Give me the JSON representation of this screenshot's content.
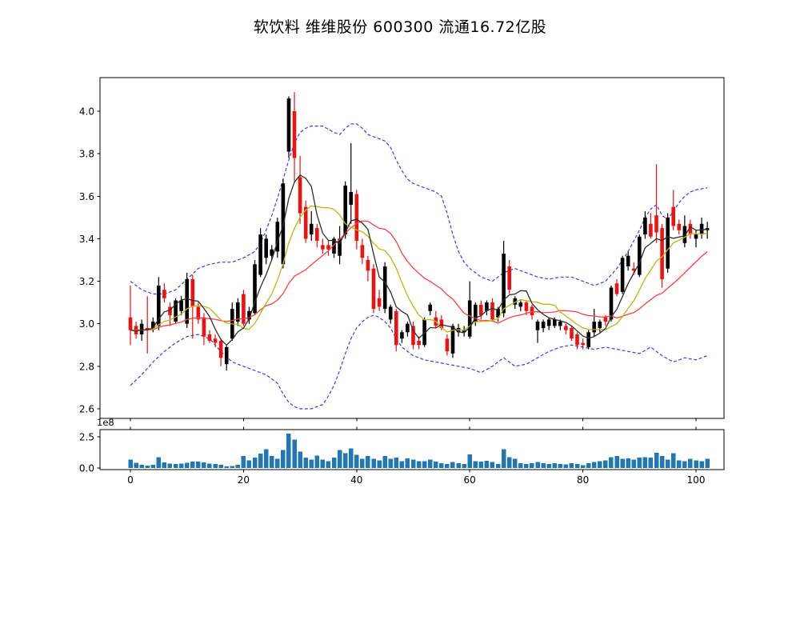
{
  "title": "软饮料 维维股份 600300 流通16.72亿股",
  "chart_data": {
    "type": "candlestick+volume",
    "title": "软饮料 维维股份 600300 流通16.72亿股",
    "price_axis": {
      "ticks": [
        2.6,
        2.8,
        3.0,
        3.2,
        3.4,
        3.6,
        3.8,
        4.0
      ],
      "ylim": [
        2.555,
        4.158
      ]
    },
    "volume_axis": {
      "ticks": [
        "0.0",
        "2.5"
      ],
      "tick_values": [
        0,
        2.5
      ],
      "offset_label": "1e8",
      "unit": 100000000,
      "ylim": [
        0,
        3.08
      ]
    },
    "x_axis": {
      "ticks": [
        0,
        20,
        40,
        60,
        80,
        100
      ],
      "xlim": [
        -5.4,
        105
      ]
    },
    "legend": "none",
    "grid": false,
    "colors": {
      "up_candle": "#000000",
      "down_candle": "#ee1111",
      "volume_bar": "#1f77b4",
      "band": "#3b3bee",
      "ma_fast": "#2e2e2e",
      "ma_mid": "#c2b411",
      "ma_slow": "#ff4040",
      "frame": "#000000",
      "background": "#ffffff"
    },
    "overlays": {
      "ma_lines": [
        {
          "name": "ma-fast-black",
          "window": 5,
          "color": "#2e2e2e"
        },
        {
          "name": "ma-mid-yellow",
          "window": 10,
          "color": "#c2b411"
        },
        {
          "name": "ma-slow-red",
          "window": 20,
          "color": "#ff4040"
        }
      ],
      "band_upper_keypoints": [
        [
          0,
          3.2
        ],
        [
          2,
          3.16
        ],
        [
          4,
          3.14
        ],
        [
          6,
          3.14
        ],
        [
          8,
          3.16
        ],
        [
          10,
          3.21
        ],
        [
          12,
          3.26
        ],
        [
          14,
          3.28
        ],
        [
          16,
          3.29
        ],
        [
          18,
          3.29
        ],
        [
          20,
          3.31
        ],
        [
          22,
          3.34
        ],
        [
          23,
          3.38
        ],
        [
          24,
          3.44
        ],
        [
          25,
          3.51
        ],
        [
          26,
          3.59
        ],
        [
          27,
          3.68
        ],
        [
          28,
          3.77
        ],
        [
          29,
          3.85
        ],
        [
          30,
          3.9
        ],
        [
          31,
          3.92
        ],
        [
          32,
          3.93
        ],
        [
          34,
          3.93
        ],
        [
          36,
          3.9
        ],
        [
          37,
          3.89
        ],
        [
          38,
          3.92
        ],
        [
          39,
          3.94
        ],
        [
          40,
          3.94
        ],
        [
          41,
          3.92
        ],
        [
          42,
          3.89
        ],
        [
          44,
          3.87
        ],
        [
          45,
          3.86
        ],
        [
          46,
          3.83
        ],
        [
          47,
          3.77
        ],
        [
          48,
          3.72
        ],
        [
          49,
          3.68
        ],
        [
          50,
          3.66
        ],
        [
          52,
          3.64
        ],
        [
          54,
          3.62
        ],
        [
          55,
          3.6
        ],
        [
          56,
          3.52
        ],
        [
          57,
          3.42
        ],
        [
          58,
          3.34
        ],
        [
          59,
          3.29
        ],
        [
          60,
          3.26
        ],
        [
          62,
          3.22
        ],
        [
          64,
          3.2
        ],
        [
          66,
          3.24
        ],
        [
          68,
          3.26
        ],
        [
          70,
          3.24
        ],
        [
          72,
          3.22
        ],
        [
          74,
          3.21
        ],
        [
          76,
          3.22
        ],
        [
          78,
          3.22
        ],
        [
          80,
          3.2
        ],
        [
          82,
          3.18
        ],
        [
          84,
          3.2
        ],
        [
          86,
          3.26
        ],
        [
          88,
          3.34
        ],
        [
          90,
          3.44
        ],
        [
          91,
          3.5
        ],
        [
          92,
          3.54
        ],
        [
          93,
          3.56
        ],
        [
          94,
          3.51
        ],
        [
          95,
          3.49
        ],
        [
          96,
          3.53
        ],
        [
          97,
          3.57
        ],
        [
          98,
          3.6
        ],
        [
          99,
          3.62
        ],
        [
          100,
          3.63
        ],
        [
          102,
          3.64
        ]
      ],
      "band_lower_keypoints": [
        [
          0,
          2.71
        ],
        [
          2,
          2.76
        ],
        [
          4,
          2.82
        ],
        [
          6,
          2.87
        ],
        [
          8,
          2.91
        ],
        [
          10,
          2.94
        ],
        [
          12,
          2.95
        ],
        [
          14,
          2.93
        ],
        [
          16,
          2.87
        ],
        [
          18,
          2.82
        ],
        [
          20,
          2.8
        ],
        [
          22,
          2.78
        ],
        [
          24,
          2.76
        ],
        [
          26,
          2.72
        ],
        [
          27,
          2.67
        ],
        [
          28,
          2.63
        ],
        [
          29,
          2.61
        ],
        [
          30,
          2.6
        ],
        [
          32,
          2.6
        ],
        [
          34,
          2.62
        ],
        [
          35,
          2.66
        ],
        [
          36,
          2.71
        ],
        [
          37,
          2.78
        ],
        [
          38,
          2.86
        ],
        [
          39,
          2.93
        ],
        [
          40,
          2.98
        ],
        [
          41,
          3.01
        ],
        [
          42,
          3.03
        ],
        [
          43,
          3.04
        ],
        [
          44,
          3.03
        ],
        [
          45,
          3.01
        ],
        [
          46,
          2.98
        ],
        [
          47,
          2.93
        ],
        [
          48,
          2.89
        ],
        [
          50,
          2.85
        ],
        [
          52,
          2.83
        ],
        [
          54,
          2.82
        ],
        [
          56,
          2.81
        ],
        [
          58,
          2.8
        ],
        [
          60,
          2.79
        ],
        [
          62,
          2.77
        ],
        [
          64,
          2.8
        ],
        [
          66,
          2.84
        ],
        [
          68,
          2.8
        ],
        [
          70,
          2.81
        ],
        [
          72,
          2.84
        ],
        [
          74,
          2.87
        ],
        [
          76,
          2.89
        ],
        [
          78,
          2.9
        ],
        [
          80,
          2.89
        ],
        [
          82,
          2.88
        ],
        [
          84,
          2.89
        ],
        [
          86,
          2.88
        ],
        [
          88,
          2.87
        ],
        [
          90,
          2.86
        ],
        [
          92,
          2.89
        ],
        [
          94,
          2.85
        ],
        [
          96,
          2.82
        ],
        [
          98,
          2.84
        ],
        [
          100,
          2.83
        ],
        [
          102,
          2.85
        ]
      ]
    },
    "candles_ohlc": [
      [
        3.03,
        3.18,
        2.9,
        2.97
      ],
      [
        2.99,
        3.01,
        2.93,
        2.95
      ],
      [
        2.95,
        3.02,
        2.92,
        3.0
      ],
      [
        2.98,
        3.13,
        2.86,
        2.97
      ],
      [
        2.98,
        3.03,
        2.96,
        3.01
      ],
      [
        2.99,
        3.22,
        2.97,
        3.18
      ],
      [
        3.16,
        3.19,
        3.1,
        3.12
      ],
      [
        3.08,
        3.1,
        2.99,
        3.04
      ],
      [
        3.01,
        3.12,
        3.0,
        3.11
      ],
      [
        3.06,
        3.13,
        3.04,
        3.11
      ],
      [
        3.0,
        3.24,
        2.98,
        3.21
      ],
      [
        3.21,
        3.23,
        2.93,
        3.08
      ],
      [
        3.08,
        3.1,
        3.0,
        3.02
      ],
      [
        3.03,
        3.05,
        2.9,
        2.94
      ],
      [
        2.95,
        2.97,
        2.91,
        2.92
      ],
      [
        2.93,
        2.95,
        2.89,
        2.91
      ],
      [
        2.92,
        2.93,
        2.8,
        2.84
      ],
      [
        2.81,
        2.9,
        2.78,
        2.89
      ],
      [
        2.93,
        3.1,
        2.92,
        3.07
      ],
      [
        3.01,
        3.12,
        2.99,
        3.1
      ],
      [
        3.14,
        3.16,
        2.99,
        3.0
      ],
      [
        3.02,
        3.08,
        3.0,
        3.06
      ],
      [
        3.05,
        3.3,
        3.04,
        3.28
      ],
      [
        3.23,
        3.45,
        3.22,
        3.42
      ],
      [
        3.31,
        3.42,
        3.28,
        3.4
      ],
      [
        3.32,
        3.37,
        3.3,
        3.35
      ],
      [
        3.34,
        3.5,
        3.31,
        3.48
      ],
      [
        3.28,
        3.68,
        3.26,
        3.66
      ],
      [
        3.81,
        4.07,
        3.78,
        4.06
      ],
      [
        4.0,
        4.09,
        3.67,
        3.78
      ],
      [
        3.69,
        3.79,
        3.47,
        3.52
      ],
      [
        3.55,
        3.58,
        3.38,
        3.4
      ],
      [
        3.42,
        3.53,
        3.39,
        3.47
      ],
      [
        3.45,
        3.47,
        3.36,
        3.39
      ],
      [
        3.37,
        3.4,
        3.33,
        3.35
      ],
      [
        3.37,
        3.39,
        3.32,
        3.35
      ],
      [
        3.33,
        3.41,
        3.31,
        3.4
      ],
      [
        3.32,
        3.46,
        3.28,
        3.4
      ],
      [
        3.42,
        3.67,
        3.4,
        3.65
      ],
      [
        3.56,
        3.85,
        3.47,
        3.62
      ],
      [
        3.61,
        3.63,
        3.35,
        3.39
      ],
      [
        3.37,
        3.4,
        3.28,
        3.31
      ],
      [
        3.3,
        3.32,
        3.2,
        3.25
      ],
      [
        3.26,
        3.28,
        3.05,
        3.07
      ],
      [
        3.12,
        3.16,
        3.06,
        3.08
      ],
      [
        3.07,
        3.29,
        3.05,
        3.27
      ],
      [
        3.02,
        3.09,
        3.0,
        3.08
      ],
      [
        3.06,
        3.07,
        2.87,
        2.9
      ],
      [
        2.93,
        2.97,
        2.91,
        2.96
      ],
      [
        2.96,
        3.01,
        2.94,
        3.0
      ],
      [
        2.99,
        3.01,
        2.88,
        2.9
      ],
      [
        2.92,
        2.94,
        2.88,
        2.9
      ],
      [
        2.9,
        3.03,
        2.89,
        3.02
      ],
      [
        3.06,
        3.1,
        3.04,
        3.09
      ],
      [
        3.03,
        3.06,
        2.98,
        2.99
      ],
      [
        3.02,
        3.04,
        2.97,
        2.98
      ],
      [
        2.93,
        2.95,
        2.85,
        2.87
      ],
      [
        2.86,
        3.0,
        2.84,
        2.99
      ],
      [
        2.96,
        3.0,
        2.94,
        2.98
      ],
      [
        2.96,
        2.99,
        2.94,
        2.97
      ],
      [
        2.94,
        3.2,
        2.93,
        3.11
      ],
      [
        3.01,
        3.1,
        2.99,
        3.09
      ],
      [
        3.09,
        3.11,
        3.02,
        3.04
      ],
      [
        3.06,
        3.11,
        3.04,
        3.1
      ],
      [
        3.1,
        3.12,
        3.01,
        3.02
      ],
      [
        3.03,
        3.08,
        3.01,
        3.07
      ],
      [
        3.05,
        3.39,
        3.03,
        3.33
      ],
      [
        3.27,
        3.3,
        3.14,
        3.16
      ],
      [
        3.09,
        3.13,
        3.07,
        3.12
      ],
      [
        3.08,
        3.11,
        3.06,
        3.1
      ],
      [
        3.1,
        3.11,
        3.04,
        3.06
      ],
      [
        3.08,
        3.09,
        3.02,
        3.04
      ],
      [
        2.97,
        3.02,
        2.91,
        3.01
      ],
      [
        2.98,
        3.02,
        2.96,
        3.01
      ],
      [
        2.99,
        3.03,
        2.97,
        3.02
      ],
      [
        2.99,
        3.03,
        2.98,
        3.02
      ],
      [
        2.99,
        3.02,
        2.97,
        3.01
      ],
      [
        2.99,
        3.0,
        2.95,
        2.97
      ],
      [
        2.98,
        2.99,
        2.92,
        2.93
      ],
      [
        2.95,
        2.96,
        2.88,
        2.9
      ],
      [
        2.91,
        2.93,
        2.88,
        2.9
      ],
      [
        2.89,
        2.97,
        2.88,
        2.96
      ],
      [
        2.96,
        3.07,
        2.94,
        3.01
      ],
      [
        2.98,
        3.02,
        2.96,
        3.01
      ],
      [
        3.03,
        3.04,
        2.99,
        3.01
      ],
      [
        3.02,
        3.18,
        3.01,
        3.17
      ],
      [
        3.19,
        3.21,
        3.13,
        3.14
      ],
      [
        3.15,
        3.32,
        3.14,
        3.31
      ],
      [
        3.27,
        3.34,
        3.25,
        3.32
      ],
      [
        3.26,
        3.29,
        3.23,
        3.25
      ],
      [
        3.23,
        3.42,
        3.22,
        3.41
      ],
      [
        3.42,
        3.53,
        3.4,
        3.5
      ],
      [
        3.47,
        3.52,
        3.4,
        3.41
      ],
      [
        3.51,
        3.75,
        3.38,
        3.43
      ],
      [
        3.45,
        3.47,
        3.17,
        3.21
      ],
      [
        3.26,
        3.52,
        3.24,
        3.5
      ],
      [
        3.55,
        3.63,
        3.44,
        3.46
      ],
      [
        3.47,
        3.49,
        3.42,
        3.44
      ],
      [
        3.38,
        3.51,
        3.36,
        3.46
      ],
      [
        3.47,
        3.49,
        3.4,
        3.42
      ],
      [
        3.4,
        3.44,
        3.36,
        3.42
      ],
      [
        3.42,
        3.5,
        3.4,
        3.47
      ],
      [
        3.44,
        3.48,
        3.4,
        3.45
      ]
    ],
    "volumes_1e8": [
      0.68,
      0.41,
      0.26,
      0.2,
      0.25,
      0.85,
      0.46,
      0.36,
      0.31,
      0.36,
      0.43,
      0.52,
      0.52,
      0.45,
      0.36,
      0.31,
      0.26,
      0.12,
      0.16,
      0.26,
      0.95,
      0.62,
      0.84,
      1.16,
      1.5,
      0.96,
      0.73,
      1.45,
      2.75,
      2.28,
      1.3,
      0.84,
      0.68,
      0.98,
      0.68,
      0.55,
      0.84,
      1.44,
      1.2,
      1.57,
      1.07,
      0.73,
      0.96,
      0.73,
      0.62,
      0.96,
      0.73,
      0.84,
      0.55,
      0.78,
      0.68,
      0.55,
      0.55,
      0.66,
      0.51,
      0.4,
      0.33,
      0.47,
      0.4,
      0.33,
      1.1,
      0.55,
      0.51,
      0.57,
      0.47,
      0.33,
      1.5,
      0.88,
      0.73,
      0.4,
      0.33,
      0.4,
      0.47,
      0.4,
      0.33,
      0.4,
      0.33,
      0.29,
      0.4,
      0.33,
      0.24,
      0.4,
      0.47,
      0.55,
      0.62,
      0.88,
      0.95,
      0.73,
      0.77,
      0.68,
      0.84,
      0.88,
      0.84,
      1.21,
      0.95,
      0.68,
      1.17,
      0.62,
      0.55,
      0.73,
      0.62,
      0.55,
      0.73
    ]
  }
}
